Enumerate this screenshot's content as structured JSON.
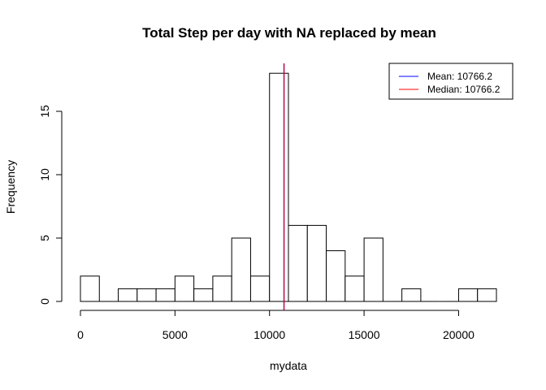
{
  "chart_data": {
    "type": "bar",
    "title": "Total Step per day with NA replaced by mean",
    "xlabel": "mydata",
    "ylabel": "Frequency",
    "bins": [
      {
        "x0": 0,
        "x1": 1000,
        "count": 2
      },
      {
        "x0": 1000,
        "x1": 2000,
        "count": 0
      },
      {
        "x0": 2000,
        "x1": 3000,
        "count": 1
      },
      {
        "x0": 3000,
        "x1": 4000,
        "count": 1
      },
      {
        "x0": 4000,
        "x1": 5000,
        "count": 1
      },
      {
        "x0": 5000,
        "x1": 6000,
        "count": 2
      },
      {
        "x0": 6000,
        "x1": 7000,
        "count": 1
      },
      {
        "x0": 7000,
        "x1": 8000,
        "count": 2
      },
      {
        "x0": 8000,
        "x1": 9000,
        "count": 5
      },
      {
        "x0": 9000,
        "x1": 10000,
        "count": 2
      },
      {
        "x0": 10000,
        "x1": 11000,
        "count": 18
      },
      {
        "x0": 11000,
        "x1": 12000,
        "count": 6
      },
      {
        "x0": 12000,
        "x1": 13000,
        "count": 6
      },
      {
        "x0": 13000,
        "x1": 14000,
        "count": 4
      },
      {
        "x0": 14000,
        "x1": 15000,
        "count": 2
      },
      {
        "x0": 15000,
        "x1": 16000,
        "count": 5
      },
      {
        "x0": 16000,
        "x1": 17000,
        "count": 0
      },
      {
        "x0": 17000,
        "x1": 18000,
        "count": 1
      },
      {
        "x0": 18000,
        "x1": 19000,
        "count": 0
      },
      {
        "x0": 19000,
        "x1": 20000,
        "count": 0
      },
      {
        "x0": 20000,
        "x1": 21000,
        "count": 1
      },
      {
        "x0": 21000,
        "x1": 22000,
        "count": 1
      }
    ],
    "xlim": [
      0,
      22000
    ],
    "ylim": [
      0,
      18
    ],
    "x_ticks": [
      0,
      5000,
      10000,
      15000,
      20000
    ],
    "y_ticks": [
      0,
      5,
      10,
      15
    ],
    "mean": 10766.2,
    "median": 10766.2,
    "legend": {
      "position": "top-right",
      "entries": [
        {
          "label": "Mean:  10766.2",
          "color": "#0000ff"
        },
        {
          "label": "Median:  10766.2",
          "color": "#ff0000"
        }
      ]
    },
    "bar_fill": "#ffffff",
    "bar_stroke": "#000000",
    "grid": false
  }
}
